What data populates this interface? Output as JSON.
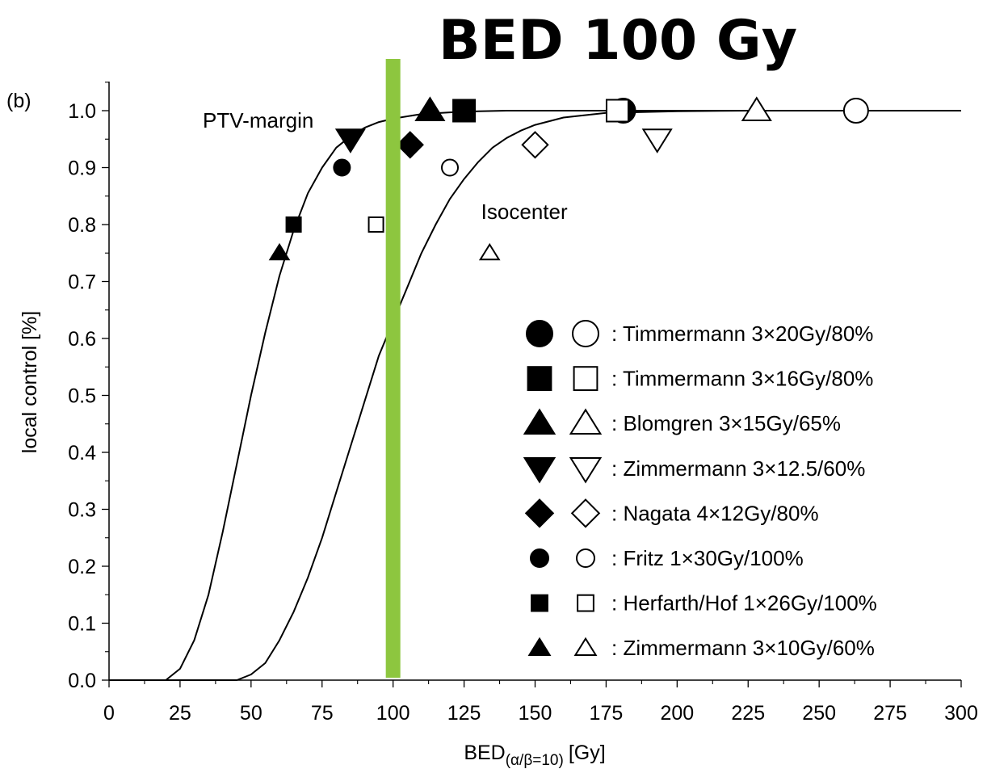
{
  "headline": "BED 100 Gy",
  "panel_label": "(b)",
  "chart_data": {
    "type": "scatter",
    "xlabel_main": "BED",
    "xlabel_sub": "(α/β=10)",
    "xlabel_unit": "[Gy]",
    "ylabel": "local control [%]",
    "xlim": [
      0,
      300
    ],
    "ylim": [
      0,
      1.05
    ],
    "x_ticks": [
      "0",
      "25",
      "50",
      "75",
      "100",
      "125",
      "150",
      "175",
      "200",
      "225",
      "250",
      "275",
      "300"
    ],
    "y_ticks": [
      "0.0",
      "0.1",
      "0.2",
      "0.3",
      "0.4",
      "0.5",
      "0.6",
      "0.7",
      "0.8",
      "0.9",
      "1.0"
    ],
    "grid": false,
    "annotations": [
      {
        "text": "PTV-margin",
        "x": 33,
        "y": 0.97
      },
      {
        "text": "Isocenter",
        "x": 131,
        "y": 0.81
      }
    ],
    "reference_line": {
      "x": 100,
      "color": "#8dc63f"
    },
    "curves": [
      {
        "label": "PTV-margin",
        "x": [
          0,
          20,
          25,
          30,
          35,
          40,
          45,
          50,
          55,
          60,
          65,
          70,
          75,
          80,
          85,
          90,
          95,
          100,
          110,
          120,
          130,
          140,
          150,
          175,
          200,
          225,
          250,
          275,
          300
        ],
        "y": [
          0.0,
          0.0,
          0.02,
          0.07,
          0.15,
          0.26,
          0.38,
          0.5,
          0.61,
          0.71,
          0.79,
          0.855,
          0.9,
          0.935,
          0.955,
          0.97,
          0.98,
          0.986,
          0.994,
          0.997,
          0.999,
          1.0,
          1.0,
          1.0,
          1.0,
          1.0,
          1.0,
          1.0,
          1.0
        ]
      },
      {
        "label": "Isocenter",
        "x": [
          0,
          45,
          50,
          55,
          60,
          65,
          70,
          75,
          80,
          85,
          90,
          95,
          100,
          105,
          110,
          115,
          120,
          125,
          130,
          135,
          140,
          145,
          150,
          160,
          175,
          200,
          225,
          250,
          275,
          300
        ],
        "y": [
          0.0,
          0.0,
          0.01,
          0.03,
          0.07,
          0.12,
          0.18,
          0.25,
          0.33,
          0.41,
          0.49,
          0.57,
          0.63,
          0.69,
          0.75,
          0.8,
          0.845,
          0.88,
          0.91,
          0.935,
          0.952,
          0.965,
          0.975,
          0.988,
          0.996,
          0.999,
          1.0,
          1.0,
          1.0,
          1.0
        ]
      }
    ],
    "series": [
      {
        "name": "Timmermann 3×20Gy/80%",
        "marker": "circle",
        "size": "large",
        "filled_point": {
          "x": 181,
          "y": 1.0
        },
        "open_point": {
          "x": 263,
          "y": 1.0
        }
      },
      {
        "name": "Timmermann 3×16Gy/80%",
        "marker": "square",
        "size": "large",
        "filled_point": {
          "x": 125,
          "y": 1.0
        },
        "open_point": {
          "x": 179,
          "y": 1.0
        }
      },
      {
        "name": "Blomgren 3×15Gy/65%",
        "marker": "triangle-up",
        "size": "large",
        "filled_point": {
          "x": 113,
          "y": 1.0
        },
        "open_point": {
          "x": 228,
          "y": 1.0
        }
      },
      {
        "name": "Zimmermann 3×12.5/60%",
        "marker": "triangle-down",
        "size": "large",
        "filled_point": {
          "x": 85,
          "y": 0.95
        },
        "open_point": {
          "x": 193,
          "y": 0.95
        }
      },
      {
        "name": "Nagata 4×12Gy/80%",
        "marker": "diamond",
        "size": "large",
        "filled_point": {
          "x": 106,
          "y": 0.94
        },
        "open_point": {
          "x": 150,
          "y": 0.94
        }
      },
      {
        "name": "Fritz 1×30Gy/100%",
        "marker": "circle",
        "size": "small",
        "filled_point": {
          "x": 82,
          "y": 0.9
        },
        "open_point": {
          "x": 120,
          "y": 0.9
        }
      },
      {
        "name": "Herfarth/Hof 1×26Gy/100%",
        "marker": "square",
        "size": "small",
        "filled_point": {
          "x": 65,
          "y": 0.8
        },
        "open_point": {
          "x": 94,
          "y": 0.8
        }
      },
      {
        "name": "Zimmermann 3×10Gy/60%",
        "marker": "triangle-up",
        "size": "small",
        "filled_point": {
          "x": 60,
          "y": 0.75
        },
        "open_point": {
          "x": 134,
          "y": 0.75
        }
      }
    ],
    "legend_position": "bottom-right",
    "legend_separator": ":"
  }
}
